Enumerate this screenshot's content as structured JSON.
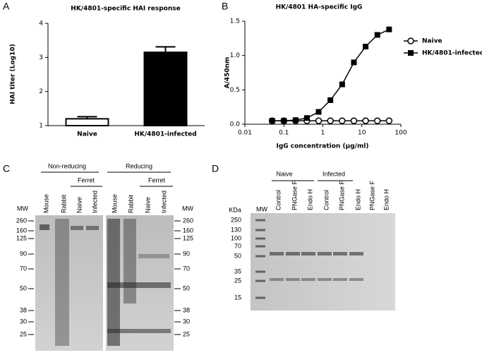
{
  "panel_labels": [
    "A",
    "B",
    "C",
    "D"
  ],
  "chart_data": [
    {
      "type": "bar",
      "title": "HK/4801-specific HAI response",
      "y_label": "HAI titer (Log10)",
      "categories": [
        "Naive",
        "HK/4801-infected"
      ],
      "values": [
        1.2,
        3.15
      ],
      "errors": [
        0.06,
        0.16
      ],
      "colors": [
        "#ffffff",
        "#000000"
      ],
      "ylim": [
        1,
        4
      ],
      "yticks": [
        1,
        2,
        3,
        4
      ]
    },
    {
      "type": "line",
      "title": "HK/4801 HA-specific IgG",
      "y_label": "A/450nm",
      "x_label": "IgG concentration (μg/ml)",
      "log_x": true,
      "x": [
        0.05,
        0.1,
        0.2,
        0.39,
        0.78,
        1.56,
        3.125,
        6.25,
        12.5,
        25,
        50
      ],
      "series": [
        {
          "name": "Naive",
          "color": "#000000",
          "marker": "open-circle",
          "values": [
            0.05,
            0.05,
            0.05,
            0.05,
            0.05,
            0.05,
            0.05,
            0.05,
            0.05,
            0.05,
            0.05
          ]
        },
        {
          "name": "HK/4801-infected",
          "color": "#000000",
          "marker": "filled-square",
          "values": [
            0.05,
            0.05,
            0.06,
            0.09,
            0.18,
            0.35,
            0.58,
            0.9,
            1.13,
            1.3,
            1.38
          ]
        }
      ],
      "xlim": [
        0.01,
        100
      ],
      "xticks": [
        0.01,
        0.1,
        1,
        10,
        100
      ],
      "ylim": [
        0,
        1.5
      ],
      "yticks": [
        {
          "value": 0,
          "label": "0.0"
        },
        0.5,
        {
          "value": 1,
          "label": "1.0"
        },
        1.5
      ]
    }
  ],
  "gel_c": {
    "groups": [
      "Non-reducing",
      "Reducing"
    ],
    "subgroups": [
      "Ferret",
      "Ferret"
    ],
    "lanes": [
      "Mouse",
      "Rabbit",
      "Naive",
      "Infected",
      "Mouse",
      "Rabbit",
      "Naive",
      "Infected"
    ],
    "mw_titles": [
      "MW",
      "MW"
    ],
    "mw_left": [
      "260",
      "160",
      "125",
      "90",
      "70",
      "50",
      "38",
      "30",
      "25"
    ],
    "mw_right": [
      "260",
      "160",
      "125",
      "90",
      "70",
      "50",
      "38",
      "30",
      "25"
    ]
  },
  "gel_d": {
    "groups": [
      "Naive",
      "Infected"
    ],
    "unit": "KDa",
    "mw_title": "MW",
    "lanes": [
      "Control",
      "PNGase F",
      "Endo H",
      "Control",
      "PNGase F",
      "Endo H",
      "PNGase F",
      "Endo H"
    ],
    "mw": [
      "250",
      "130",
      "100",
      "70",
      "50",
      "35",
      "25",
      "15"
    ]
  }
}
